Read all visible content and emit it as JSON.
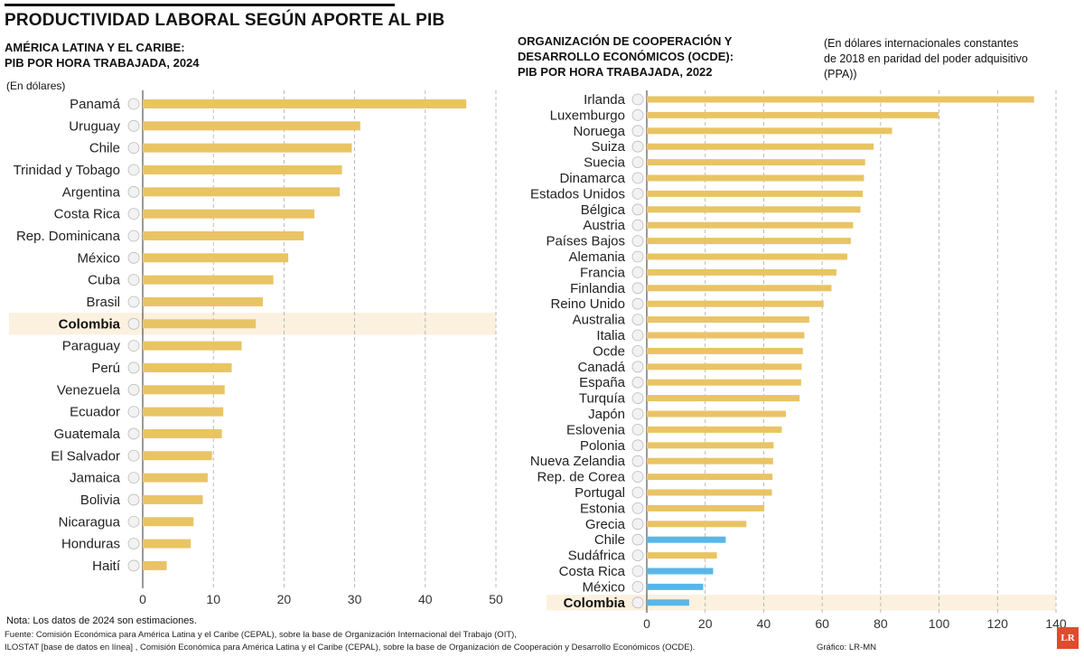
{
  "title": "PRODUCTIVIDAD LABORAL SEGÚN APORTE AL PIB",
  "note": "Nota: Los datos de 2024 son estimaciones.",
  "source_lines": [
    "Fuente: Comisión Económica para América Latina y el Caribe (CEPAL), sobre la base de Organización Internacional del Trabajo (OIT),",
    "ILOSTAT [base de datos en línea] , Comisión Económica para América Latina y el Caribe (CEPAL), sobre la base de Organización de Cooperación y Desarrollo Económicos (OCDE)."
  ],
  "credit": "Gráfico: LR-MN",
  "logo": "LR",
  "colors": {
    "bar": "#e9c464",
    "bar_highlight": "#5ab6e6",
    "highlight_band": "#fbf1de",
    "grid": "#aaaaaa"
  },
  "chart_data": [
    {
      "type": "bar",
      "orientation": "horizontal",
      "subtitle_lines": [
        "AMÉRICA LATINA Y EL CARIBE:",
        "PIB POR HORA TRABAJADA, 2024"
      ],
      "unit_label": "(En dólares)",
      "categories": [
        "Panamá",
        "Uruguay",
        "Chile",
        "Trinidad y Tobago",
        "Argentina",
        "Costa Rica",
        "Rep. Dominicana",
        "México",
        "Cuba",
        "Brasil",
        "Colombia",
        "Paraguay",
        "Perú",
        "Venezuela",
        "Ecuador",
        "Guatemala",
        "El Salvador",
        "Jamaica",
        "Bolivia",
        "Nicaragua",
        "Honduras",
        "Haití"
      ],
      "values": [
        45.8,
        30.8,
        29.6,
        28.2,
        27.9,
        24.3,
        22.8,
        20.6,
        18.5,
        17.0,
        16.0,
        14.0,
        12.6,
        11.6,
        11.4,
        11.2,
        9.8,
        9.2,
        8.5,
        7.2,
        6.8,
        3.4
      ],
      "highlight": "Colombia",
      "xlim": [
        0,
        50
      ],
      "xticks": [
        0,
        10,
        20,
        30,
        40,
        50
      ],
      "grid": true
    },
    {
      "type": "bar",
      "orientation": "horizontal",
      "subtitle_lines": [
        "ORGANIZACIÓN DE COOPERACIÓN Y",
        "DESARROLLO ECONÓMICOS (OCDE):",
        "PIB POR HORA TRABAJADA, 2022"
      ],
      "unit_lines": [
        "(En dólares internacionales constantes",
        "de 2018 en paridad del poder adquisitivo",
        "(PPA))"
      ],
      "categories": [
        "Irlanda",
        "Luxemburgo",
        "Noruega",
        "Suiza",
        "Suecia",
        "Dinamarca",
        "Estados Unidos",
        "Bélgica",
        "Austria",
        "Países Bajos",
        "Alemania",
        "Francia",
        "Finlandia",
        "Reino Unido",
        "Australia",
        "Italia",
        "Ocde",
        "Canadá",
        "España",
        "Turquía",
        "Japón",
        "Eslovenia",
        "Polonia",
        "Nueva Zelandia",
        "Rep. de Corea",
        "Portugal",
        "Estonia",
        "Grecia",
        "Chile",
        "Sudáfrica",
        "Costa Rica",
        "México",
        "Colombia"
      ],
      "values": [
        132.5,
        99.8,
        83.9,
        77.6,
        74.7,
        74.3,
        73.9,
        73.1,
        70.6,
        69.8,
        68.6,
        64.9,
        63.2,
        60.5,
        55.6,
        53.9,
        53.4,
        53.0,
        52.8,
        52.3,
        47.6,
        46.2,
        43.4,
        43.2,
        43.0,
        42.8,
        40.2,
        34.1,
        27.0,
        24.0,
        22.7,
        19.3,
        14.5
      ],
      "blue_categories": [
        "Chile",
        "Costa Rica",
        "México",
        "Colombia"
      ],
      "highlight": "Colombia",
      "xlim": [
        0,
        140
      ],
      "xticks": [
        0,
        20,
        40,
        60,
        80,
        100,
        120,
        140
      ],
      "grid": true
    }
  ]
}
